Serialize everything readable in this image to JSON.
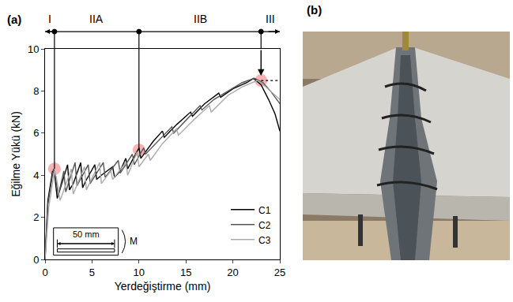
{
  "chart_data": {
    "type": "line",
    "panel_label": "(a)",
    "x_label": "Yerdeğiştirme (mm)",
    "y_label": "Eğilme Yükü (kN)",
    "xlim": [
      0,
      25
    ],
    "ylim": [
      0,
      10
    ],
    "xticks": [
      0,
      5,
      10,
      15,
      20,
      25
    ],
    "yticks": [
      0,
      2,
      4,
      6,
      8,
      10
    ],
    "grid": false,
    "legend": "lower right",
    "series": [
      {
        "name": "C1",
        "color": "#000000",
        "x": [
          0,
          0.3,
          0.8,
          1.0,
          1.3,
          2.4,
          2.6,
          3.0,
          3.8,
          4.0,
          4.3,
          5.3,
          5.5,
          6.0,
          7.2,
          7.4,
          8.0,
          8.6,
          8.8,
          9.5,
          10.0,
          10.2,
          11.5,
          12.5,
          12.7,
          14,
          15.5,
          15.7,
          17,
          18.5,
          18.7,
          20,
          21.5,
          22.2,
          22.5,
          23.0,
          23.8,
          24.5,
          25
        ],
        "values": [
          0,
          2.8,
          4.2,
          4.1,
          2.9,
          4.5,
          3.3,
          3.6,
          4.6,
          3.4,
          3.7,
          4.5,
          3.8,
          4.0,
          4.4,
          3.9,
          4.2,
          4.8,
          4.3,
          4.9,
          5.3,
          4.8,
          5.6,
          6.1,
          5.8,
          6.4,
          7.0,
          6.8,
          7.4,
          7.9,
          7.7,
          8.1,
          8.4,
          8.6,
          8.5,
          8.3,
          7.6,
          6.9,
          6.1
        ]
      },
      {
        "name": "C2",
        "color": "#555555",
        "x": [
          0,
          0.3,
          0.9,
          1.1,
          1.4,
          2.0,
          2.2,
          3.2,
          3.4,
          4.6,
          4.8,
          6.2,
          6.4,
          7.8,
          8.0,
          9.3,
          9.5,
          10.5,
          10.7,
          12,
          13.5,
          13.7,
          15,
          16.5,
          16.7,
          18,
          19.5,
          21,
          22.3,
          22.8,
          23.2,
          24,
          25
        ],
        "values": [
          0,
          2.6,
          4.3,
          4.0,
          3.0,
          4.2,
          3.2,
          4.6,
          3.5,
          4.5,
          3.6,
          4.6,
          3.9,
          4.7,
          4.1,
          5.0,
          4.5,
          5.3,
          5.0,
          5.6,
          6.3,
          6.0,
          6.6,
          7.3,
          7.1,
          7.6,
          8.0,
          8.4,
          8.6,
          8.5,
          8.4,
          8.0,
          7.4
        ]
      },
      {
        "name": "C3",
        "color": "#aaaaaa",
        "x": [
          0,
          0.4,
          1.0,
          1.2,
          1.6,
          2.8,
          3.0,
          4.2,
          4.4,
          5.8,
          6.0,
          7.0,
          7.2,
          8.6,
          8.8,
          9.8,
          10.0,
          11.0,
          11.2,
          12.5,
          14,
          14.2,
          16,
          17.5,
          17.7,
          19.5,
          21,
          22.0,
          22.6,
          23.0,
          23.5,
          24.2,
          25
        ],
        "values": [
          0,
          2.5,
          4.2,
          3.9,
          2.8,
          4.3,
          3.1,
          4.4,
          3.3,
          4.6,
          3.6,
          4.2,
          3.8,
          4.6,
          4.0,
          5.1,
          4.4,
          5.0,
          4.7,
          5.5,
          6.2,
          5.9,
          6.7,
          7.3,
          7.0,
          7.8,
          8.2,
          8.4,
          8.5,
          8.4,
          8.2,
          7.9,
          7.6
        ]
      }
    ],
    "regions": [
      {
        "label": "I",
        "from": 0,
        "to": 1
      },
      {
        "label": "IIA",
        "from": 1,
        "to": 10
      },
      {
        "label": "IIB",
        "from": 10,
        "to": 23
      },
      {
        "label": "III",
        "from": 23,
        "to": 25
      }
    ],
    "region_points": {
      "x": [
        1,
        10,
        23
      ],
      "y": [
        4.3,
        5.2,
        8.5
      ],
      "color": "#f08080"
    },
    "inset": {
      "dimension": "50 mm",
      "moment": "M"
    }
  },
  "photo": {
    "panel_label": "(b)"
  }
}
